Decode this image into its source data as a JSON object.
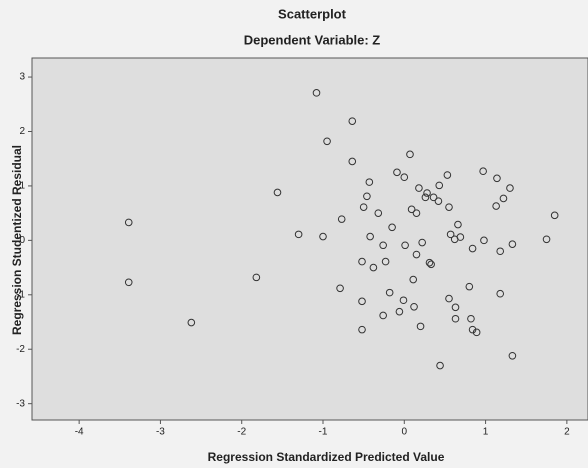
{
  "chart_data": {
    "type": "scatter",
    "title": "Scatterplot",
    "subtitle": "Dependent Variable: Z",
    "x_label": "Regression Standardized Predicted Value",
    "y_label": "Regression Studentized Residual",
    "color": "#333333",
    "xlim": [
      -4.58,
      2.26
    ],
    "xticks": [
      -4,
      -3,
      -2,
      -1,
      0,
      1,
      2
    ],
    "ylim": [
      -3.3,
      3.35
    ],
    "yticks": [
      -3,
      -2,
      -1,
      0,
      1,
      2,
      3
    ],
    "x": [
      -3.39,
      -3.39,
      -2.62,
      -1.82,
      -1.56,
      -1.3,
      -1.08,
      -1.0,
      -0.95,
      -0.77,
      -0.79,
      -0.64,
      -0.64,
      -0.52,
      -0.52,
      -0.52,
      -0.5,
      -0.46,
      -0.43,
      -0.42,
      -0.38,
      -0.32,
      -0.26,
      -0.26,
      -0.23,
      -0.18,
      -0.15,
      -0.09,
      -0.06,
      -0.01,
      0.0,
      0.01,
      0.07,
      0.09,
      0.11,
      0.12,
      0.15,
      0.15,
      0.18,
      0.2,
      0.22,
      0.26,
      0.28,
      0.31,
      0.33,
      0.36,
      0.42,
      0.43,
      0.44,
      0.53,
      0.55,
      0.57,
      0.55,
      0.66,
      0.69,
      0.62,
      0.63,
      0.63,
      0.8,
      0.82,
      0.84,
      0.84,
      0.89,
      0.97,
      0.98,
      1.14,
      1.13,
      1.18,
      1.18,
      1.22,
      1.3,
      1.33,
      1.33,
      1.75,
      1.85
    ],
    "y": [
      0.33,
      -0.77,
      -1.51,
      -0.68,
      0.88,
      0.11,
      2.71,
      0.07,
      1.82,
      0.39,
      -0.88,
      2.19,
      1.45,
      -1.64,
      -1.12,
      -0.39,
      0.61,
      0.81,
      1.07,
      0.07,
      -0.5,
      0.5,
      -0.09,
      -1.38,
      -0.39,
      -0.96,
      0.24,
      1.25,
      -1.31,
      -1.1,
      1.16,
      -0.09,
      1.58,
      0.57,
      -0.72,
      -1.22,
      0.5,
      -0.26,
      0.96,
      -1.58,
      -0.04,
      0.79,
      0.87,
      -0.41,
      -0.44,
      0.79,
      0.72,
      1.01,
      -2.3,
      1.2,
      0.61,
      0.11,
      -1.07,
      0.29,
      0.06,
      0.02,
      -1.23,
      -1.44,
      -0.85,
      -1.44,
      -0.15,
      -1.64,
      -1.69,
      1.27,
      0.0,
      1.14,
      0.63,
      -0.2,
      -0.98,
      0.77,
      0.96,
      -0.07,
      -2.12,
      0.02,
      0.46
    ]
  }
}
